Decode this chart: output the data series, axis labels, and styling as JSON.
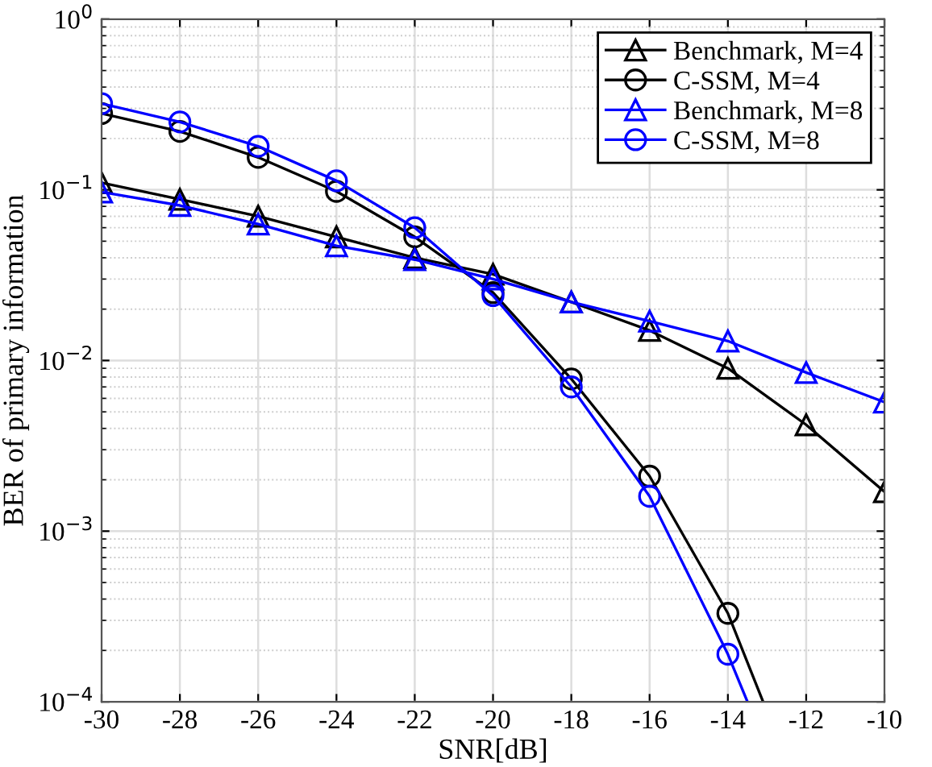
{
  "chart_data": {
    "type": "line",
    "xlabel": "SNR[dB]",
    "ylabel": "BER of primary information",
    "log": "y",
    "xlim": [
      -30,
      -10
    ],
    "ylim": [
      0.0001,
      1
    ],
    "xticks": [
      -30,
      -28,
      -26,
      -24,
      -22,
      -20,
      -18,
      -16,
      -14,
      -12,
      -10
    ],
    "yticks": [
      {
        "value": 0.0001,
        "label": "10$^{−4}$"
      },
      {
        "value": 0.001,
        "label": "10$^{−3}$"
      },
      {
        "value": 0.01,
        "label": "10$^{−2}$"
      },
      {
        "value": 0.1,
        "label": "10$^{−1}$"
      },
      {
        "value": 1,
        "label": "10$^{0}$"
      }
    ],
    "grid": true,
    "legend": "top right",
    "line_style": "solid",
    "series": [
      {
        "name": "Benchmark, M=4",
        "color": "#000000",
        "marker": "triangle",
        "x": [
          -30,
          -28,
          -26,
          -24,
          -22,
          -20,
          -18,
          -16,
          -14,
          -12,
          -10
        ],
        "values": [
          0.11,
          0.088,
          0.07,
          0.053,
          0.04,
          0.032,
          0.022,
          0.015,
          0.009,
          0.0042,
          0.0017
        ]
      },
      {
        "name": "C-SSM, M=4",
        "color": "#000000",
        "marker": "circle",
        "x": [
          -30,
          -28,
          -26,
          -24,
          -22,
          -20,
          -18,
          -16,
          -14,
          -13.1
        ],
        "values": [
          0.28,
          0.22,
          0.155,
          0.098,
          0.053,
          0.025,
          0.0078,
          0.0021,
          0.00033,
          0.0001
        ]
      },
      {
        "name": "Benchmark, M=8",
        "color": "#0000ff",
        "marker": "triangle",
        "x": [
          -30,
          -28,
          -26,
          -24,
          -22,
          -20,
          -18,
          -16,
          -14,
          -12,
          -10
        ],
        "values": [
          0.097,
          0.081,
          0.063,
          0.047,
          0.039,
          0.03,
          0.022,
          0.017,
          0.013,
          0.0085,
          0.0057
        ]
      },
      {
        "name": "C-SSM, M=8",
        "color": "#0000ff",
        "marker": "circle",
        "x": [
          -30,
          -28,
          -26,
          -24,
          -22,
          -20,
          -18,
          -16,
          -14,
          -13.5
        ],
        "values": [
          0.32,
          0.25,
          0.18,
          0.113,
          0.06,
          0.024,
          0.007,
          0.0016,
          0.00019,
          0.0001
        ]
      }
    ]
  }
}
